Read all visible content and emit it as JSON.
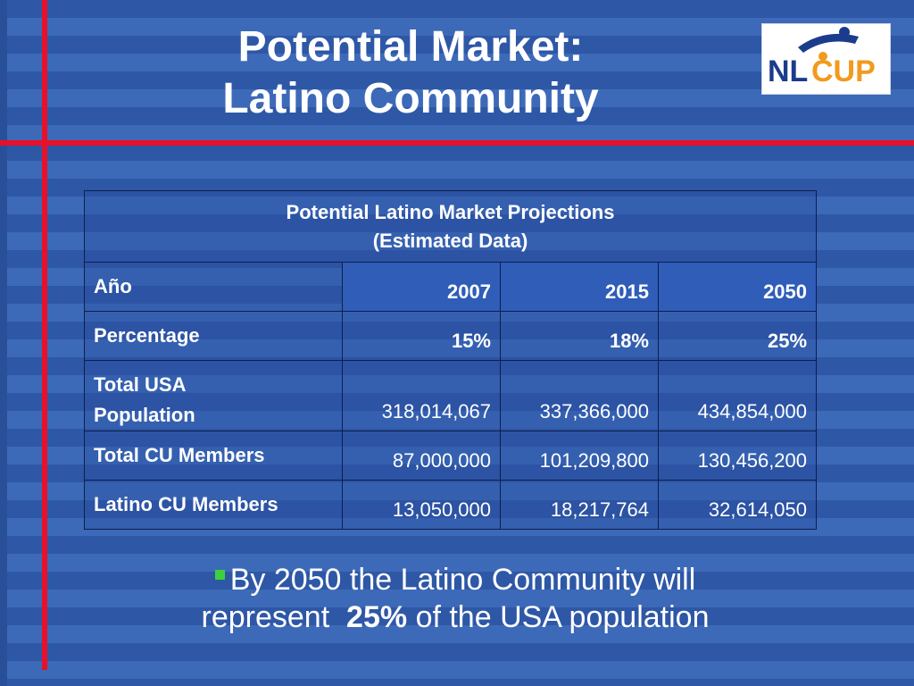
{
  "slide": {
    "title_line1": "Potential Market:",
    "title_line2": "Latino Community",
    "logo": {
      "text_nl": "NL",
      "text_cup": "CUP",
      "colors": {
        "blue": "#1b3c8c",
        "orange": "#f29a1d"
      }
    }
  },
  "table": {
    "caption_line1": "Potential Latino Market Projections",
    "caption_line2": "(Estimated Data)",
    "header_label": "Año",
    "years": [
      "2007",
      "2015",
      "2050"
    ],
    "rows": [
      {
        "label_line1": "Percentage",
        "label_line2": "",
        "values": [
          "15%",
          "18%",
          "25%"
        ]
      },
      {
        "label_line1": "Total USA",
        "label_line2": "Population",
        "values": [
          "318,014,067",
          "337,366,000",
          "434,854,000"
        ]
      },
      {
        "label_line1": "Total CU Members",
        "label_line2": "",
        "values": [
          "87,000,000",
          "101,209,800",
          "130,456,200"
        ]
      },
      {
        "label_line1": "Latino CU Members",
        "label_line2": "",
        "values": [
          "13,050,000",
          "18,217,764",
          "32,614,050"
        ]
      }
    ]
  },
  "bullet": {
    "line1": "By 2050 the Latino Community will",
    "line2_prefix": "represent",
    "line2_bold": "25%",
    "line2_suffix": "of the USA population"
  },
  "colors": {
    "background": "#2e57a6",
    "stripe": "#3d6ab8",
    "accent_red": "#e8102a",
    "bullet_green": "#3cd13c"
  }
}
